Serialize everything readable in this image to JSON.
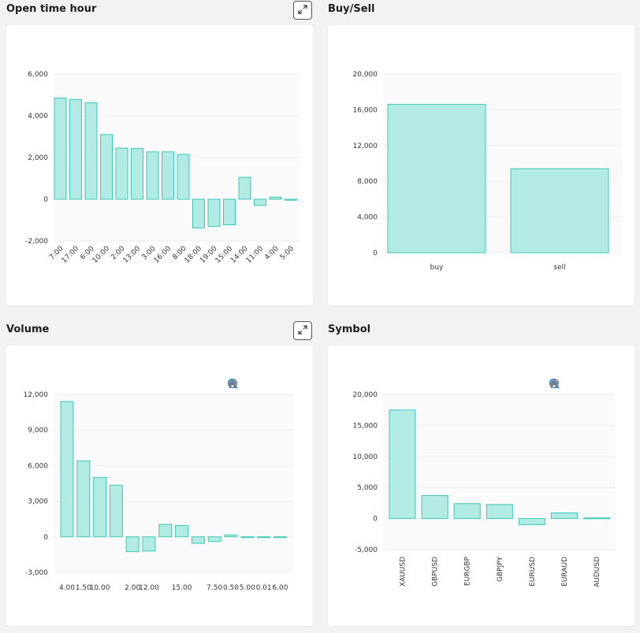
{
  "panels": {
    "open_time": {
      "title": "Open time hour"
    },
    "buy_sell": {
      "title": "Buy/Sell"
    },
    "volume": {
      "title": "Volume"
    },
    "symbol": {
      "title": "Symbol"
    }
  },
  "icons": {
    "expand": "expand-icon",
    "zoom_in": "zoom-in-icon",
    "zoom_out": "zoom-out-icon",
    "zoom_select": "magnifier-icon",
    "pan": "hand-icon",
    "reset": "home-icon"
  },
  "colors": {
    "bar_fill": "#b2ebe3",
    "bar_stroke": "#3cc9b5",
    "grid": "#eeeeee",
    "plot_bg": "#fafafa",
    "toolbar_icon": "#6e8192",
    "toolbar_active": "#008ffb"
  },
  "chart_data": [
    {
      "id": "open_time",
      "type": "bar",
      "categories": [
        "7:00",
        "17:00",
        "6:00",
        "10:00",
        "2:00",
        "13:00",
        "3:00",
        "16:00",
        "8:00",
        "18:00",
        "19:00",
        "15:00",
        "14:00",
        "11:00",
        "4:00",
        "5:00"
      ],
      "values": [
        4850,
        4780,
        4620,
        3100,
        2450,
        2430,
        2270,
        2270,
        2150,
        -1380,
        -1300,
        -1230,
        1050,
        -300,
        100,
        -50
      ],
      "yticks": [
        "6,000",
        "4,000",
        "2,000",
        "0",
        "-2,000"
      ],
      "ylim": [
        -2000,
        6000
      ],
      "x_label_rotation": -45,
      "grid": true
    },
    {
      "id": "buy_sell",
      "type": "bar",
      "categories": [
        "buy",
        "sell"
      ],
      "values": [
        16600,
        9400
      ],
      "yticks": [
        "20,000",
        "16,000",
        "12,000",
        "8,000",
        "4,000",
        "0"
      ],
      "ylim": [
        0,
        20000
      ],
      "grid": true
    },
    {
      "id": "volume",
      "type": "bar",
      "categories": [
        "4.00",
        "1.50",
        "10.00",
        "",
        "2.00",
        "12.00",
        "",
        "15.00",
        "",
        "7.50",
        "0.50",
        "5.00",
        "0.01",
        "6.00"
      ],
      "values": [
        11400,
        6400,
        5000,
        4350,
        -1250,
        -1200,
        1050,
        950,
        -550,
        -400,
        150,
        -50,
        -50,
        -50
      ],
      "yticks": [
        "12,000",
        "9,000",
        "6,000",
        "3,000",
        "0",
        "-3,000"
      ],
      "ylim": [
        -3000,
        12000
      ],
      "grid": true
    },
    {
      "id": "symbol",
      "type": "bar",
      "categories": [
        "XAUUSD",
        "GBPUSD",
        "EURGBP",
        "GBPJPY",
        "EURUSD",
        "EURAUD",
        "AUDUSD"
      ],
      "values": [
        17500,
        3700,
        2400,
        2250,
        -1000,
        900,
        100
      ],
      "yticks": [
        "20,000",
        "15,000",
        "10,000",
        "5,000",
        "0",
        "-5,000"
      ],
      "ylim": [
        -5000,
        20000
      ],
      "x_label_rotation": -90,
      "grid": true
    }
  ]
}
